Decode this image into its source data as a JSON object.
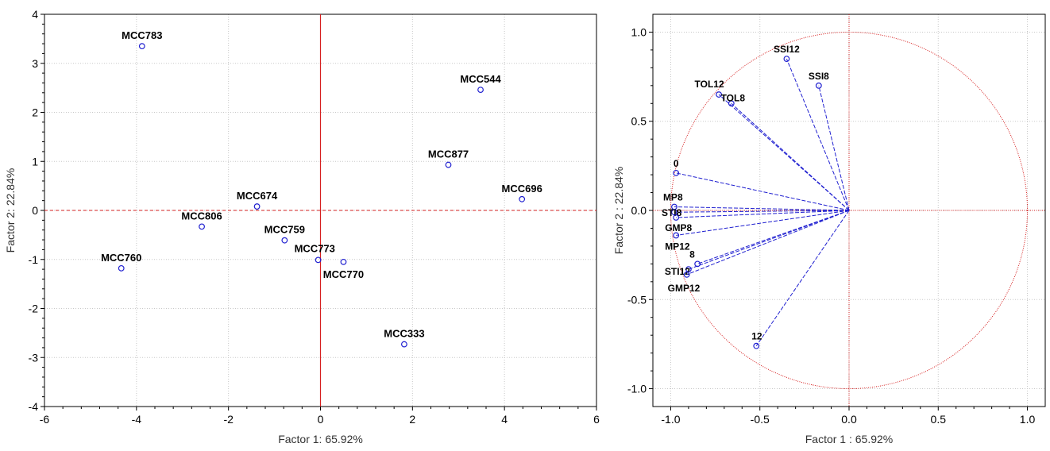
{
  "chart_data": [
    {
      "type": "scatter",
      "xlabel": "Factor 1: 65.92%",
      "ylabel": "Factor 2: 22.84%",
      "xlim": [
        -6,
        6
      ],
      "ylim": [
        -4,
        4
      ],
      "xticks": [
        -6,
        -4,
        -2,
        0,
        2,
        4,
        6
      ],
      "yticks": [
        -4,
        -3,
        -2,
        -1,
        0,
        1,
        2,
        3,
        4
      ],
      "grid": true,
      "reference_lines": {
        "x": 0,
        "y": 0,
        "color": "#d62020"
      },
      "marker_color": "#2020d0",
      "points": [
        {
          "label": "MCC783",
          "x": -3.88,
          "y": 3.35
        },
        {
          "label": "MCC544",
          "x": 3.48,
          "y": 2.46
        },
        {
          "label": "MCC877",
          "x": 2.78,
          "y": 0.93
        },
        {
          "label": "MCC696",
          "x": 4.38,
          "y": 0.23
        },
        {
          "label": "MCC674",
          "x": -1.38,
          "y": 0.08
        },
        {
          "label": "MCC806",
          "x": -2.58,
          "y": -0.33
        },
        {
          "label": "MCC759",
          "x": -0.78,
          "y": -0.61
        },
        {
          "label": "MCC773",
          "x": -0.05,
          "y": -1.01
        },
        {
          "label": "MCC770",
          "x": 0.5,
          "y": -1.05
        },
        {
          "label": "MCC760",
          "x": -4.33,
          "y": -1.18
        },
        {
          "label": "MCC333",
          "x": 1.82,
          "y": -2.73
        }
      ]
    },
    {
      "type": "scatter",
      "xlabel": "Factor 1 : 65.92%",
      "ylabel": "Factor 2 : 22.84%",
      "xlim": [
        -1.1,
        1.1
      ],
      "ylim": [
        -1.1,
        1.1
      ],
      "xticks": [
        -1.0,
        -0.5,
        0.0,
        0.5,
        1.0
      ],
      "yticks": [
        -1.0,
        -0.5,
        0.0,
        0.5,
        1.0
      ],
      "grid": true,
      "unit_circle": true,
      "reference_lines": {
        "x": 0,
        "y": 0,
        "color": "#d62020"
      },
      "marker_color": "#2020d0",
      "vectors": [
        {
          "label": "SSI12",
          "x": -0.35,
          "y": 0.85
        },
        {
          "label": "SSI8",
          "x": -0.17,
          "y": 0.7
        },
        {
          "label": "TOL12",
          "x": -0.73,
          "y": 0.65
        },
        {
          "label": "TOL8",
          "x": -0.66,
          "y": 0.6
        },
        {
          "label": "0",
          "x": -0.97,
          "y": 0.21
        },
        {
          "label": "MP8",
          "x": -0.98,
          "y": 0.02
        },
        {
          "label": "STI8",
          "x": -0.98,
          "y": -0.01
        },
        {
          "label": "GMP8",
          "x": -0.97,
          "y": -0.04
        },
        {
          "label": "MP12",
          "x": -0.97,
          "y": -0.14
        },
        {
          "label": "8",
          "x": -0.85,
          "y": -0.3
        },
        {
          "label": "STI12",
          "x": -0.9,
          "y": -0.33
        },
        {
          "label": "GMP12",
          "x": -0.91,
          "y": -0.36
        },
        {
          "label": "12",
          "x": -0.52,
          "y": -0.76
        }
      ]
    }
  ]
}
